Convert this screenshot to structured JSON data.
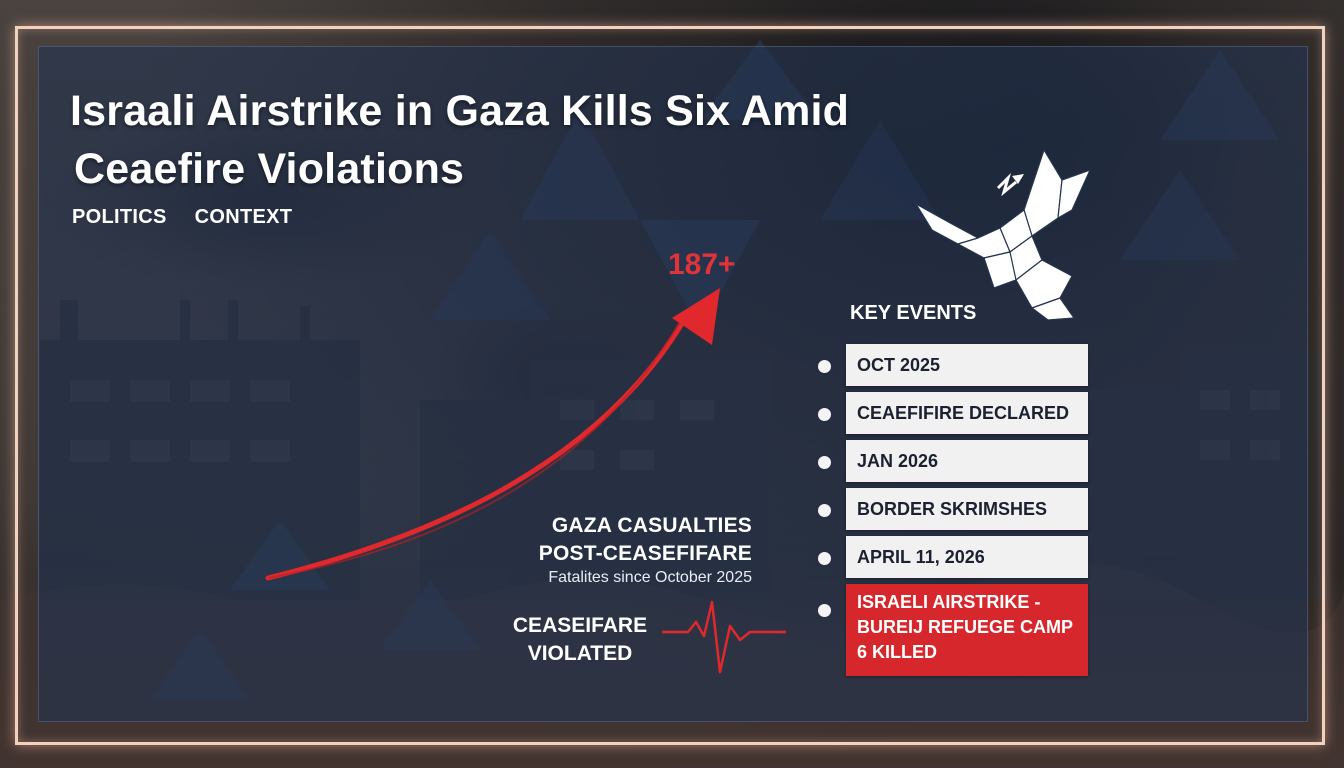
{
  "headline": {
    "line1": "Israali Airstrike in Gaza Kills Six Amid",
    "line2": "Ceaefire Violations"
  },
  "tags": [
    "POLITICS",
    "CONTEXT"
  ],
  "chart": {
    "metric": "187+",
    "label_line1": "GAZA CASUALTIES",
    "label_line2": "POST-CEASEFIFARE",
    "label_line3": "Fatalites since October 2025",
    "violated_line1": "CEASEIFARE",
    "violated_line2": "VIOLATED"
  },
  "key_events": {
    "title": "KEY EVENTS",
    "items": [
      {
        "text": "OCT 2025"
      },
      {
        "text": "CEAEFIFIRE DECLARED"
      },
      {
        "text": "JAN 2026"
      },
      {
        "text": "BORDER SKRIMSHES"
      },
      {
        "text": "APRIL 11, 2026"
      },
      {
        "lines": [
          "ISRAELI AIRSTRIKE -",
          "BUREIJ REFUEGE CAMP",
          "6 KILLED"
        ]
      }
    ]
  },
  "icons": {
    "peace_dove": "dove-icon",
    "heartbeat": "heartbeat-line-icon",
    "trend_arrow": "trend-arrow-icon"
  },
  "colors": {
    "accent_red": "#d6282c",
    "text_white": "#ffffff",
    "panel_blue": "#243450",
    "frame_glow": "#f0d2bf"
  }
}
